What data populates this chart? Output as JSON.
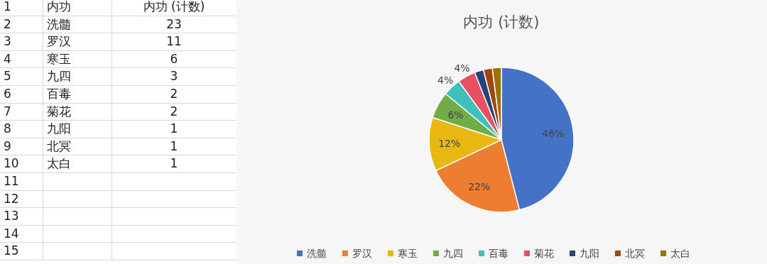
{
  "chart_data": {
    "type": "pie",
    "title": "内功 (计数)",
    "categories": [
      "洗髓",
      "罗汉",
      "寒玉",
      "九四",
      "百毒",
      "菊花",
      "九阳",
      "北冥",
      "太白"
    ],
    "values": [
      46,
      22,
      12,
      6,
      4,
      4,
      2,
      2,
      2
    ],
    "colors": [
      "#4472c4",
      "#ed7d31",
      "#e8b710",
      "#70ad47",
      "#3fbfbd",
      "#e8505f",
      "#264478",
      "#9e480e",
      "#997300"
    ],
    "value_labels": [
      "46%",
      "22%",
      "12%",
      "6%",
      "4%",
      "4%",
      null,
      null,
      null
    ],
    "legend": "bottom",
    "annotations": [
      "1",
      "内功",
      "内功 (计数)",
      "2",
      "23",
      "3",
      "11",
      "4",
      "6",
      "5",
      "3",
      "6",
      "2",
      "7",
      "2",
      "8",
      "1",
      "9",
      "1",
      "10",
      "1",
      "11",
      "12",
      "13",
      "14",
      "15"
    ]
  }
}
